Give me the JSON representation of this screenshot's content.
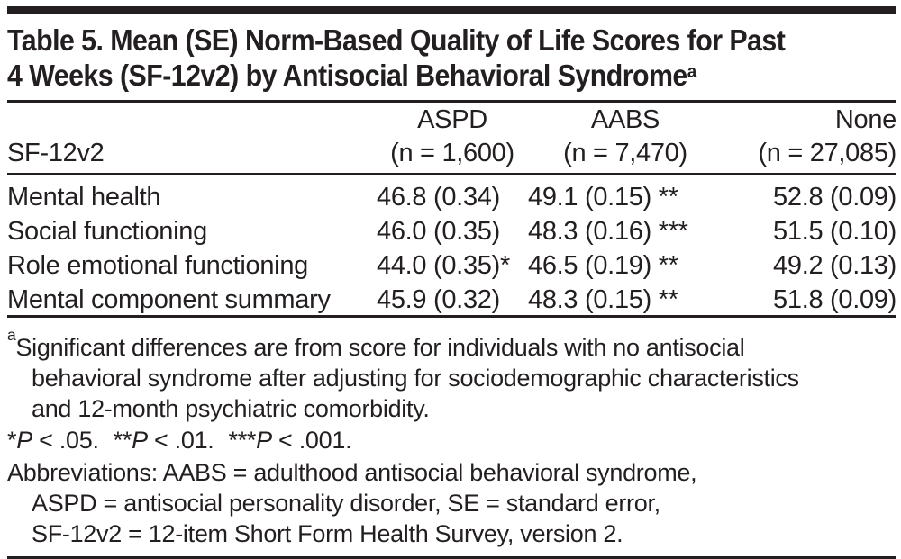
{
  "title": {
    "line1": "Table 5. Mean (SE) Norm-Based Quality of Life Scores for Past",
    "line2": "4 Weeks (SF-12v2) by Antisocial Behavioral Syndrome",
    "superscript": "a"
  },
  "table": {
    "row_header_label": "SF-12v2",
    "columns": [
      {
        "name": "ASPD",
        "n_label": "(n = 1,600)"
      },
      {
        "name": "AABS",
        "n_label": "(n = 7,470)"
      },
      {
        "name": "None",
        "n_label": "(n = 27,085)"
      }
    ],
    "rows": [
      {
        "label": "Mental health",
        "aspd": "46.8 (0.34)",
        "aabs": "49.1 (0.15) **",
        "none": "52.8 (0.09)"
      },
      {
        "label": "Social functioning",
        "aspd": "46.0 (0.35)",
        "aabs": "48.3 (0.16) ***",
        "none": "51.5 (0.10)"
      },
      {
        "label": "Role emotional functioning",
        "aspd": "44.0 (0.35)*",
        "aabs": "46.5 (0.19) **",
        "none": "49.2 (0.13)"
      },
      {
        "label": "Mental component summary",
        "aspd": "45.9 (0.32)",
        "aabs": "48.3 (0.15) **",
        "none": "51.8 (0.09)"
      }
    ]
  },
  "footnotes": {
    "a_superscript": "a",
    "a_lines": [
      "Significant differences are from score for individuals with no antisocial",
      "behavioral syndrome after adjusting for sociodemographic characteristics",
      "and 12-month psychiatric comorbidity."
    ],
    "p_values": [
      {
        "stars": "*",
        "p": "P",
        "text": " < .05."
      },
      {
        "stars": "**",
        "p": "P",
        "text": " < .01."
      },
      {
        "stars": "***",
        "p": "P",
        "text": " < .001."
      }
    ],
    "abbreviations_lines": [
      "Abbreviations: AABS = adulthood antisocial behavioral syndrome,",
      "ASPD = antisocial personality disorder, SE = standard error,",
      "SF-12v2 = 12-item Short Form Health Survey, version 2."
    ]
  },
  "colors": {
    "ink": "#231f20",
    "background": "#ffffff"
  }
}
